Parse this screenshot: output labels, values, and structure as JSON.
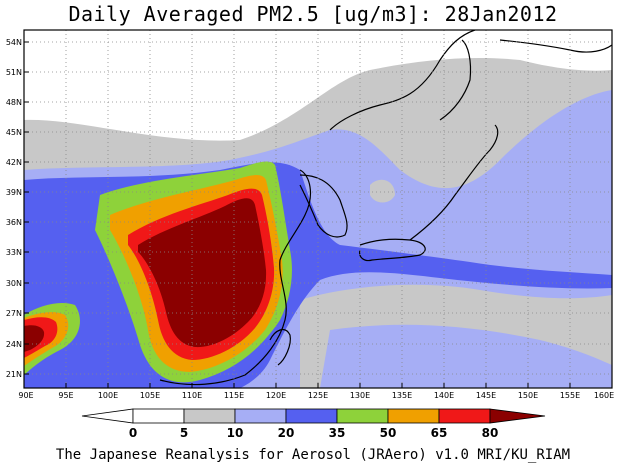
{
  "title": "Daily Averaged PM2.5 [ug/m3]: 28Jan2012",
  "footer": "The Japanese Reanalysis for Aerosol (JRAero) v1.0 MRI/KU_RIAM",
  "map": {
    "lon_ticks": [
      "90E",
      "95E",
      "100E",
      "105E",
      "110E",
      "115E",
      "120E",
      "125E",
      "130E",
      "135E",
      "140E",
      "145E",
      "150E",
      "155E",
      "160E"
    ],
    "lat_ticks": [
      "54N",
      "51N",
      "48N",
      "45N",
      "42N",
      "39N",
      "36N",
      "33N",
      "30N",
      "27N",
      "24N",
      "21N"
    ]
  },
  "legend": {
    "labels": [
      "0",
      "5",
      "10",
      "20",
      "35",
      "50",
      "65",
      "80"
    ],
    "colors": {
      "c0_5": "#ffffff",
      "c5_10": "#c8c8c8",
      "c10_20": "#a6aef5",
      "c20_35": "#5560f0",
      "c35_50": "#8ed23a",
      "c50_65": "#f0a000",
      "c65_80": "#f01818",
      "c80": "#8b0000"
    }
  }
}
